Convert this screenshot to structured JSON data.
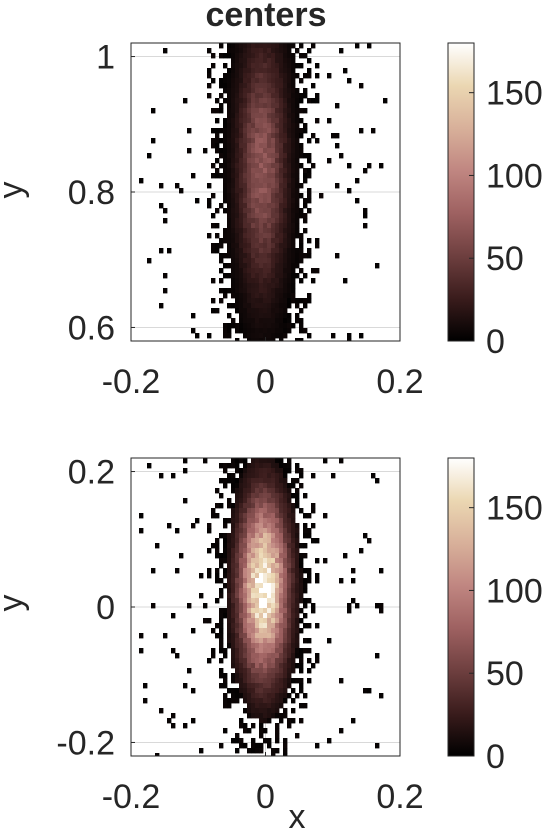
{
  "chart_data": [
    {
      "type": "heatmap",
      "title": "centers",
      "xlabel": "",
      "ylabel": "y",
      "xlim": [
        -0.2,
        0.2
      ],
      "ylim": [
        0.58,
        1.02
      ],
      "xticks": [
        -0.2,
        0,
        0.2
      ],
      "xtick_labels": [
        "-0.2",
        "0",
        "0.2"
      ],
      "yticks": [
        0.6,
        0.8,
        1.0
      ],
      "ytick_labels": [
        "0.6",
        "0.8",
        "1"
      ],
      "grid": true,
      "colorbar": {
        "min": 0,
        "max": 180,
        "ticks": [
          0,
          50,
          100,
          150
        ],
        "tick_labels": [
          "0",
          "50",
          "100",
          "150"
        ]
      },
      "density": {
        "center_x": -0.005,
        "center_y": 0.84,
        "sigma_x": 0.024,
        "sigma_y": 0.12,
        "peak": 70
      }
    },
    {
      "type": "heatmap",
      "title": "",
      "xlabel": "x",
      "ylabel": "y",
      "xlim": [
        -0.2,
        0.2
      ],
      "ylim": [
        -0.22,
        0.22
      ],
      "xticks": [
        -0.2,
        0,
        0.2
      ],
      "xtick_labels": [
        "-0.2",
        "0",
        "0.2"
      ],
      "yticks": [
        -0.2,
        0,
        0.2
      ],
      "ytick_labels": [
        "-0.2",
        "0",
        "0.2"
      ],
      "grid": true,
      "colorbar": {
        "min": 0,
        "max": 180,
        "ticks": [
          0,
          50,
          100,
          150
        ],
        "tick_labels": [
          "0",
          "50",
          "100",
          "150"
        ]
      },
      "density": {
        "center_x": -0.003,
        "center_y": 0.03,
        "sigma_x": 0.024,
        "sigma_y": 0.085,
        "peak": 180
      }
    }
  ],
  "colors": {
    "colormap": [
      "#000000",
      "#3a1c1c",
      "#6e3f3f",
      "#9e6161",
      "#c08681",
      "#d8b09a",
      "#ebd7b2",
      "#ffffff"
    ],
    "grid": "#d9d9d9",
    "axis": "#262626",
    "background": "#ffffff"
  }
}
